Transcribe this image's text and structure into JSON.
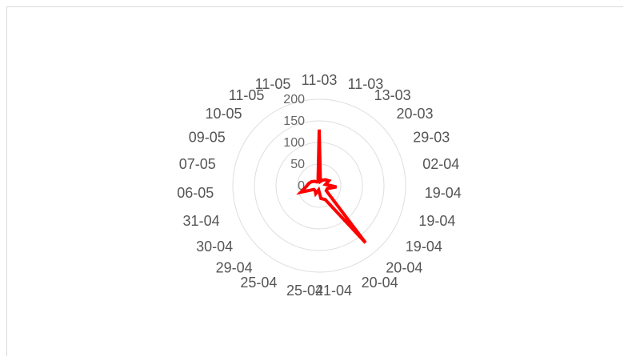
{
  "chart_data": {
    "type": "radar",
    "title": "",
    "categories": [
      "11-03",
      "11-03",
      "13-03",
      "20-03",
      "29-03",
      "02-04",
      "19-04",
      "19-04",
      "19-04",
      "20-04",
      "20-04",
      "21-04",
      "25-04",
      "25-04",
      "29-04",
      "30-04",
      "31-04",
      "06-05",
      "07-05",
      "09-05",
      "10-05",
      "11-05",
      "11-05"
    ],
    "series": [
      {
        "values": [
          130,
          10,
          15,
          20,
          25,
          15,
          40,
          20,
          20,
          170,
          35,
          30,
          10,
          20,
          15,
          15,
          45,
          30,
          25,
          20,
          15,
          10,
          10
        ]
      }
    ],
    "rlim": [
      0,
      200
    ],
    "rticks": [
      0,
      50,
      100,
      150,
      200
    ],
    "grid": true,
    "series_color": "#ff0000"
  }
}
